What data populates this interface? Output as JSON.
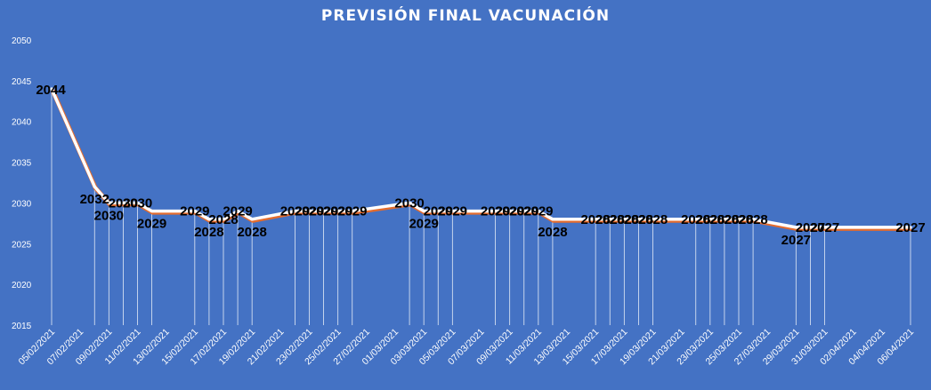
{
  "chart_data": {
    "type": "line",
    "title": "PREVISIÓN FINAL VACUNACIÓN",
    "xlabel": "",
    "ylabel": "",
    "ylim": [
      2015,
      2050
    ],
    "yticks": [
      2015,
      2020,
      2025,
      2030,
      2035,
      2040,
      2045,
      2050
    ],
    "x_tick_labels": [
      "05/02/2021",
      "07/02/2021",
      "09/02/2021",
      "11/02/2021",
      "13/02/2021",
      "15/02/2021",
      "17/02/2021",
      "19/02/2021",
      "21/02/2021",
      "23/02/2021",
      "25/02/2021",
      "27/02/2021",
      "01/03/2021",
      "03/03/2021",
      "05/03/2021",
      "07/03/2021",
      "09/03/2021",
      "11/03/2021",
      "13/03/2021",
      "15/03/2021",
      "17/03/2021",
      "19/03/2021",
      "21/03/2021",
      "23/03/2021",
      "25/03/2021",
      "27/03/2021",
      "29/03/2021",
      "31/03/2021",
      "02/04/2021",
      "04/04/2021",
      "06/04/2021"
    ],
    "series": [
      {
        "color": "#ffffff",
        "points": [
          {
            "x": "05/02/2021",
            "y": 2044
          },
          {
            "x": "08/02/2021",
            "y": 2032
          },
          {
            "x": "09/02/2021",
            "y": 2030
          },
          {
            "x": "10/02/2021",
            "y": 2030
          },
          {
            "x": "11/02/2021",
            "y": 2030
          },
          {
            "x": "12/02/2021",
            "y": 2029
          },
          {
            "x": "15/02/2021",
            "y": 2029
          },
          {
            "x": "16/02/2021",
            "y": 2028
          },
          {
            "x": "17/02/2021",
            "y": 2028
          },
          {
            "x": "18/02/2021",
            "y": 2029
          },
          {
            "x": "19/02/2021",
            "y": 2028
          },
          {
            "x": "22/02/2021",
            "y": 2029
          },
          {
            "x": "23/02/2021",
            "y": 2029
          },
          {
            "x": "24/02/2021",
            "y": 2029
          },
          {
            "x": "25/02/2021",
            "y": 2029
          },
          {
            "x": "26/02/2021",
            "y": 2029
          },
          {
            "x": "02/03/2021",
            "y": 2030
          },
          {
            "x": "03/03/2021",
            "y": 2029
          },
          {
            "x": "04/03/2021",
            "y": 2029
          },
          {
            "x": "05/03/2021",
            "y": 2029
          },
          {
            "x": "08/03/2021",
            "y": 2029
          },
          {
            "x": "09/03/2021",
            "y": 2029
          },
          {
            "x": "10/03/2021",
            "y": 2029
          },
          {
            "x": "11/03/2021",
            "y": 2029
          },
          {
            "x": "12/03/2021",
            "y": 2028
          },
          {
            "x": "15/03/2021",
            "y": 2028
          },
          {
            "x": "16/03/2021",
            "y": 2028
          },
          {
            "x": "17/03/2021",
            "y": 2028
          },
          {
            "x": "18/03/2021",
            "y": 2028
          },
          {
            "x": "19/03/2021",
            "y": 2028
          },
          {
            "x": "22/03/2021",
            "y": 2028
          },
          {
            "x": "23/03/2021",
            "y": 2028
          },
          {
            "x": "24/03/2021",
            "y": 2028
          },
          {
            "x": "25/03/2021",
            "y": 2028
          },
          {
            "x": "26/03/2021",
            "y": 2028
          },
          {
            "x": "29/03/2021",
            "y": 2027
          },
          {
            "x": "30/03/2021",
            "y": 2027
          },
          {
            "x": "31/03/2021",
            "y": 2027
          },
          {
            "x": "06/04/2021",
            "y": 2027
          }
        ]
      }
    ],
    "grid": false,
    "legend": "none"
  }
}
